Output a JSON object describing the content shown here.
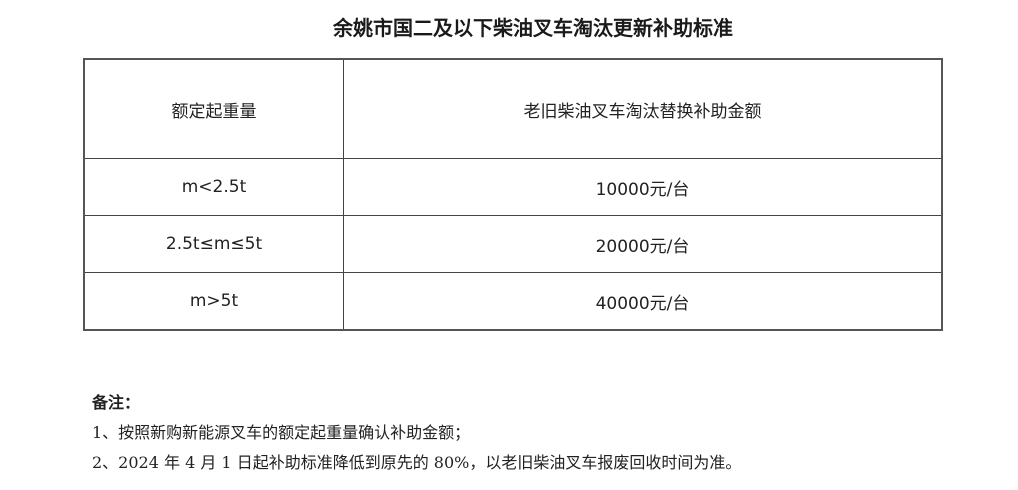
{
  "title": "余姚市国二及以下柴油叉车淘汰更新补助标准",
  "table": {
    "headers": [
      "额定起重量",
      "老旧柴油叉车淘汰替换补助金额"
    ],
    "rows": [
      [
        "m<2.5t",
        "10000元/台"
      ],
      [
        "2.5t≤m≤5t",
        "20000元/台"
      ],
      [
        "m>5t",
        "40000元/台"
      ]
    ]
  },
  "notes": {
    "heading": "备注：",
    "items": [
      "1、按照新购新能源叉车的额定起重量确认补助金额；",
      "2、2024 年 4 月 1 日起补助标准降低到原先的 80%，以老旧柴油叉车报废回收时间为准。"
    ]
  }
}
